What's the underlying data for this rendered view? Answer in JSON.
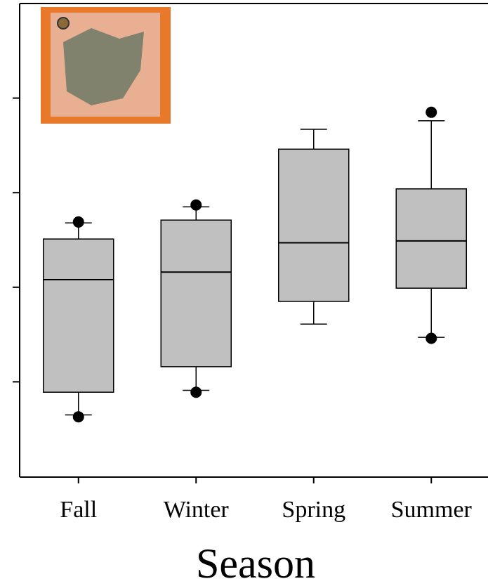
{
  "chart_data": {
    "type": "box",
    "x_label": "Season",
    "categories": [
      "Fall",
      "Winter",
      "Spring",
      "Summer"
    ],
    "color": "#c0c0c0",
    "ylim": [
      0,
      5
    ],
    "yticks": [
      1,
      2,
      3,
      4
    ],
    "boxes": [
      {
        "whisker_low": 0.65,
        "q1": 0.89,
        "median": 2.08,
        "q3": 2.51,
        "whisker_high": 2.68,
        "outliers": [
          2.69,
          0.63
        ]
      },
      {
        "whisker_low": 0.91,
        "q1": 1.16,
        "median": 2.16,
        "q3": 2.71,
        "whisker_high": 2.85,
        "outliers": [
          2.87,
          0.89
        ]
      },
      {
        "whisker_low": 1.61,
        "q1": 1.85,
        "median": 2.47,
        "q3": 3.46,
        "whisker_high": 3.67,
        "outliers": []
      },
      {
        "whisker_low": 1.47,
        "q1": 1.99,
        "median": 2.49,
        "q3": 3.04,
        "whisker_high": 3.76,
        "outliers": [
          3.85,
          1.46
        ]
      }
    ]
  }
}
